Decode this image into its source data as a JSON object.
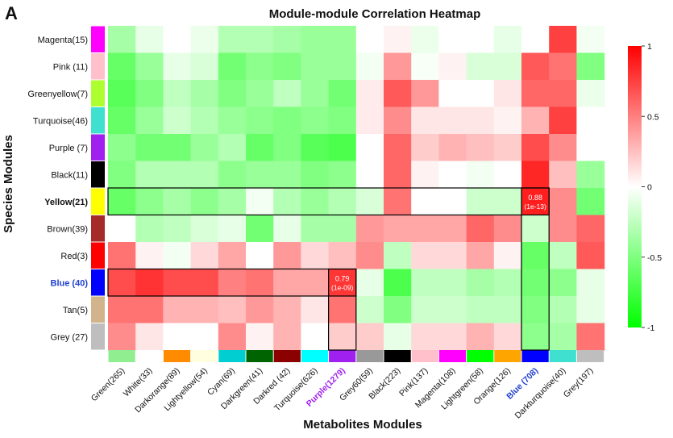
{
  "chart_data": {
    "type": "heatmap",
    "panel_letter": "A",
    "title": "Module-module Correlation Heatmap",
    "xlabel": "Metabolites Modules",
    "ylabel": "Species Modules",
    "rows": [
      {
        "label": "Magenta(15)",
        "color": "#ff00ff"
      },
      {
        "label": "Pink (11)",
        "color": "#ffc0cb"
      },
      {
        "label": "Greenyellow(7)",
        "color": "#adff2f"
      },
      {
        "label": "Turquoise(46)",
        "color": "#40e0d0"
      },
      {
        "label": "Purple (7)",
        "color": "#a020f0"
      },
      {
        "label": "Black(11)",
        "color": "#000000"
      },
      {
        "label": "Yellow(21)",
        "color": "#ffff00",
        "bold": true
      },
      {
        "label": "Brown(39)",
        "color": "#a52a2a"
      },
      {
        "label": "Red(3)",
        "color": "#ff0000"
      },
      {
        "label": "Blue (40)",
        "color": "#0000ff",
        "bold": true,
        "text_color": "#1f3fcf"
      },
      {
        "label": "Tan(5)",
        "color": "#d2b48c"
      },
      {
        "label": "Grey (27)",
        "color": "#bebebe"
      }
    ],
    "columns": [
      {
        "label": "Green(265)",
        "color": "#90ee90"
      },
      {
        "label": "White(33)",
        "color": "#ffffff"
      },
      {
        "label": "Darkorange(89)",
        "color": "#ff8c00"
      },
      {
        "label": "Lightyellow(54)",
        "color": "#ffffe0"
      },
      {
        "label": "Cyan(69)",
        "color": "#00ced1"
      },
      {
        "label": "Darkgreen(41)",
        "color": "#006400"
      },
      {
        "label": "Darkred (42)",
        "color": "#8b0000"
      },
      {
        "label": "Turquoise(626)",
        "color": "#00ffff"
      },
      {
        "label": "Purple(1279)",
        "color": "#a020f0",
        "bold": true,
        "text_color": "#a020f0"
      },
      {
        "label": "Grey60(59)",
        "color": "#999999"
      },
      {
        "label": "Black(223)",
        "color": "#000000"
      },
      {
        "label": "Pink(137)",
        "color": "#ffc0cb"
      },
      {
        "label": "Magenta(108)",
        "color": "#ff00ff"
      },
      {
        "label": "Lightgreen(58)",
        "color": "#00ff00"
      },
      {
        "label": "Orange(126)",
        "color": "#ffa500"
      },
      {
        "label": "Blue (708)",
        "color": "#0000ff",
        "bold": true,
        "text_color": "#1f3fcf"
      },
      {
        "label": "Darkturquoise(40)",
        "color": "#40e0d0"
      },
      {
        "label": "Grey(197)",
        "color": "#bebebe"
      }
    ],
    "values": [
      [
        -0.35,
        -0.1,
        0.0,
        -0.08,
        -0.3,
        -0.3,
        -0.35,
        -0.4,
        -0.4,
        0.0,
        0.05,
        -0.08,
        0.0,
        0.0,
        -0.1,
        0.0,
        0.75,
        -0.05
      ],
      [
        -0.6,
        -0.4,
        -0.1,
        -0.15,
        -0.55,
        -0.45,
        -0.5,
        -0.4,
        -0.4,
        -0.05,
        0.4,
        -0.03,
        0.05,
        -0.15,
        -0.15,
        0.65,
        0.55,
        -0.5
      ],
      [
        -0.65,
        -0.5,
        -0.25,
        -0.35,
        -0.5,
        -0.4,
        -0.25,
        -0.4,
        -0.55,
        0.08,
        0.65,
        0.4,
        0.0,
        0.0,
        0.1,
        0.6,
        0.6,
        -0.08
      ],
      [
        -0.6,
        -0.4,
        -0.2,
        -0.3,
        -0.4,
        -0.45,
        -0.5,
        -0.45,
        -0.5,
        0.08,
        0.45,
        0.1,
        0.1,
        0.1,
        0.05,
        0.3,
        0.75,
        0.0
      ],
      [
        -0.45,
        -0.55,
        -0.55,
        -0.4,
        -0.3,
        -0.6,
        -0.5,
        -0.65,
        -0.7,
        0.0,
        0.6,
        0.2,
        0.3,
        0.25,
        0.2,
        0.7,
        0.45,
        0.0
      ],
      [
        -0.5,
        -0.3,
        -0.3,
        -0.3,
        -0.45,
        -0.4,
        -0.4,
        -0.5,
        -0.45,
        0.0,
        0.6,
        0.05,
        0.0,
        -0.05,
        0.0,
        0.85,
        0.25,
        -0.4
      ],
      [
        -0.6,
        -0.45,
        -0.35,
        -0.45,
        -0.35,
        -0.05,
        -0.3,
        -0.4,
        -0.3,
        -0.15,
        0.55,
        0.0,
        0.0,
        -0.2,
        -0.2,
        0.88,
        0.45,
        -0.55
      ],
      [
        0.0,
        -0.3,
        -0.25,
        -0.15,
        -0.1,
        -0.55,
        -0.1,
        -0.35,
        -0.35,
        0.4,
        0.35,
        0.35,
        0.35,
        0.6,
        0.45,
        -0.2,
        0.45,
        0.6
      ],
      [
        0.55,
        0.05,
        -0.05,
        0.15,
        0.35,
        0.0,
        0.4,
        0.15,
        0.25,
        0.45,
        -0.25,
        0.15,
        0.15,
        0.35,
        0.05,
        -0.6,
        -0.25,
        0.65
      ],
      [
        0.7,
        0.8,
        0.7,
        0.7,
        0.5,
        0.55,
        0.35,
        0.35,
        0.79,
        -0.1,
        -0.7,
        -0.25,
        -0.25,
        -0.35,
        -0.3,
        -0.55,
        -0.45,
        -0.1
      ],
      [
        0.55,
        0.55,
        0.3,
        0.3,
        0.25,
        0.4,
        0.3,
        0.1,
        0.55,
        -0.2,
        -0.5,
        -0.2,
        -0.2,
        -0.25,
        -0.25,
        -0.5,
        -0.3,
        -0.1
      ],
      [
        0.45,
        0.1,
        0.0,
        0.0,
        0.45,
        0.05,
        0.3,
        0.0,
        0.2,
        0.2,
        -0.1,
        0.15,
        0.15,
        0.3,
        0.15,
        -0.45,
        -0.35,
        0.55
      ]
    ],
    "annotations": [
      {
        "row": 6,
        "col": 15,
        "text": "0.88",
        "subtext": "(1e-13)"
      },
      {
        "row": 9,
        "col": 8,
        "text": "0.79",
        "subtext": "(1e-09)"
      }
    ],
    "highlights": [
      {
        "row": 6,
        "col": 15
      },
      {
        "row": 9,
        "col": 8
      }
    ],
    "colorbar": {
      "min": -1,
      "max": 1,
      "ticks": [
        1,
        0.5,
        0,
        -0.5,
        -1
      ],
      "tick_labels": [
        "1",
        "0.5",
        "0",
        "-0.5",
        "-1"
      ],
      "colors": [
        "#00ff00",
        "#ffffff",
        "#ff0000"
      ]
    }
  }
}
